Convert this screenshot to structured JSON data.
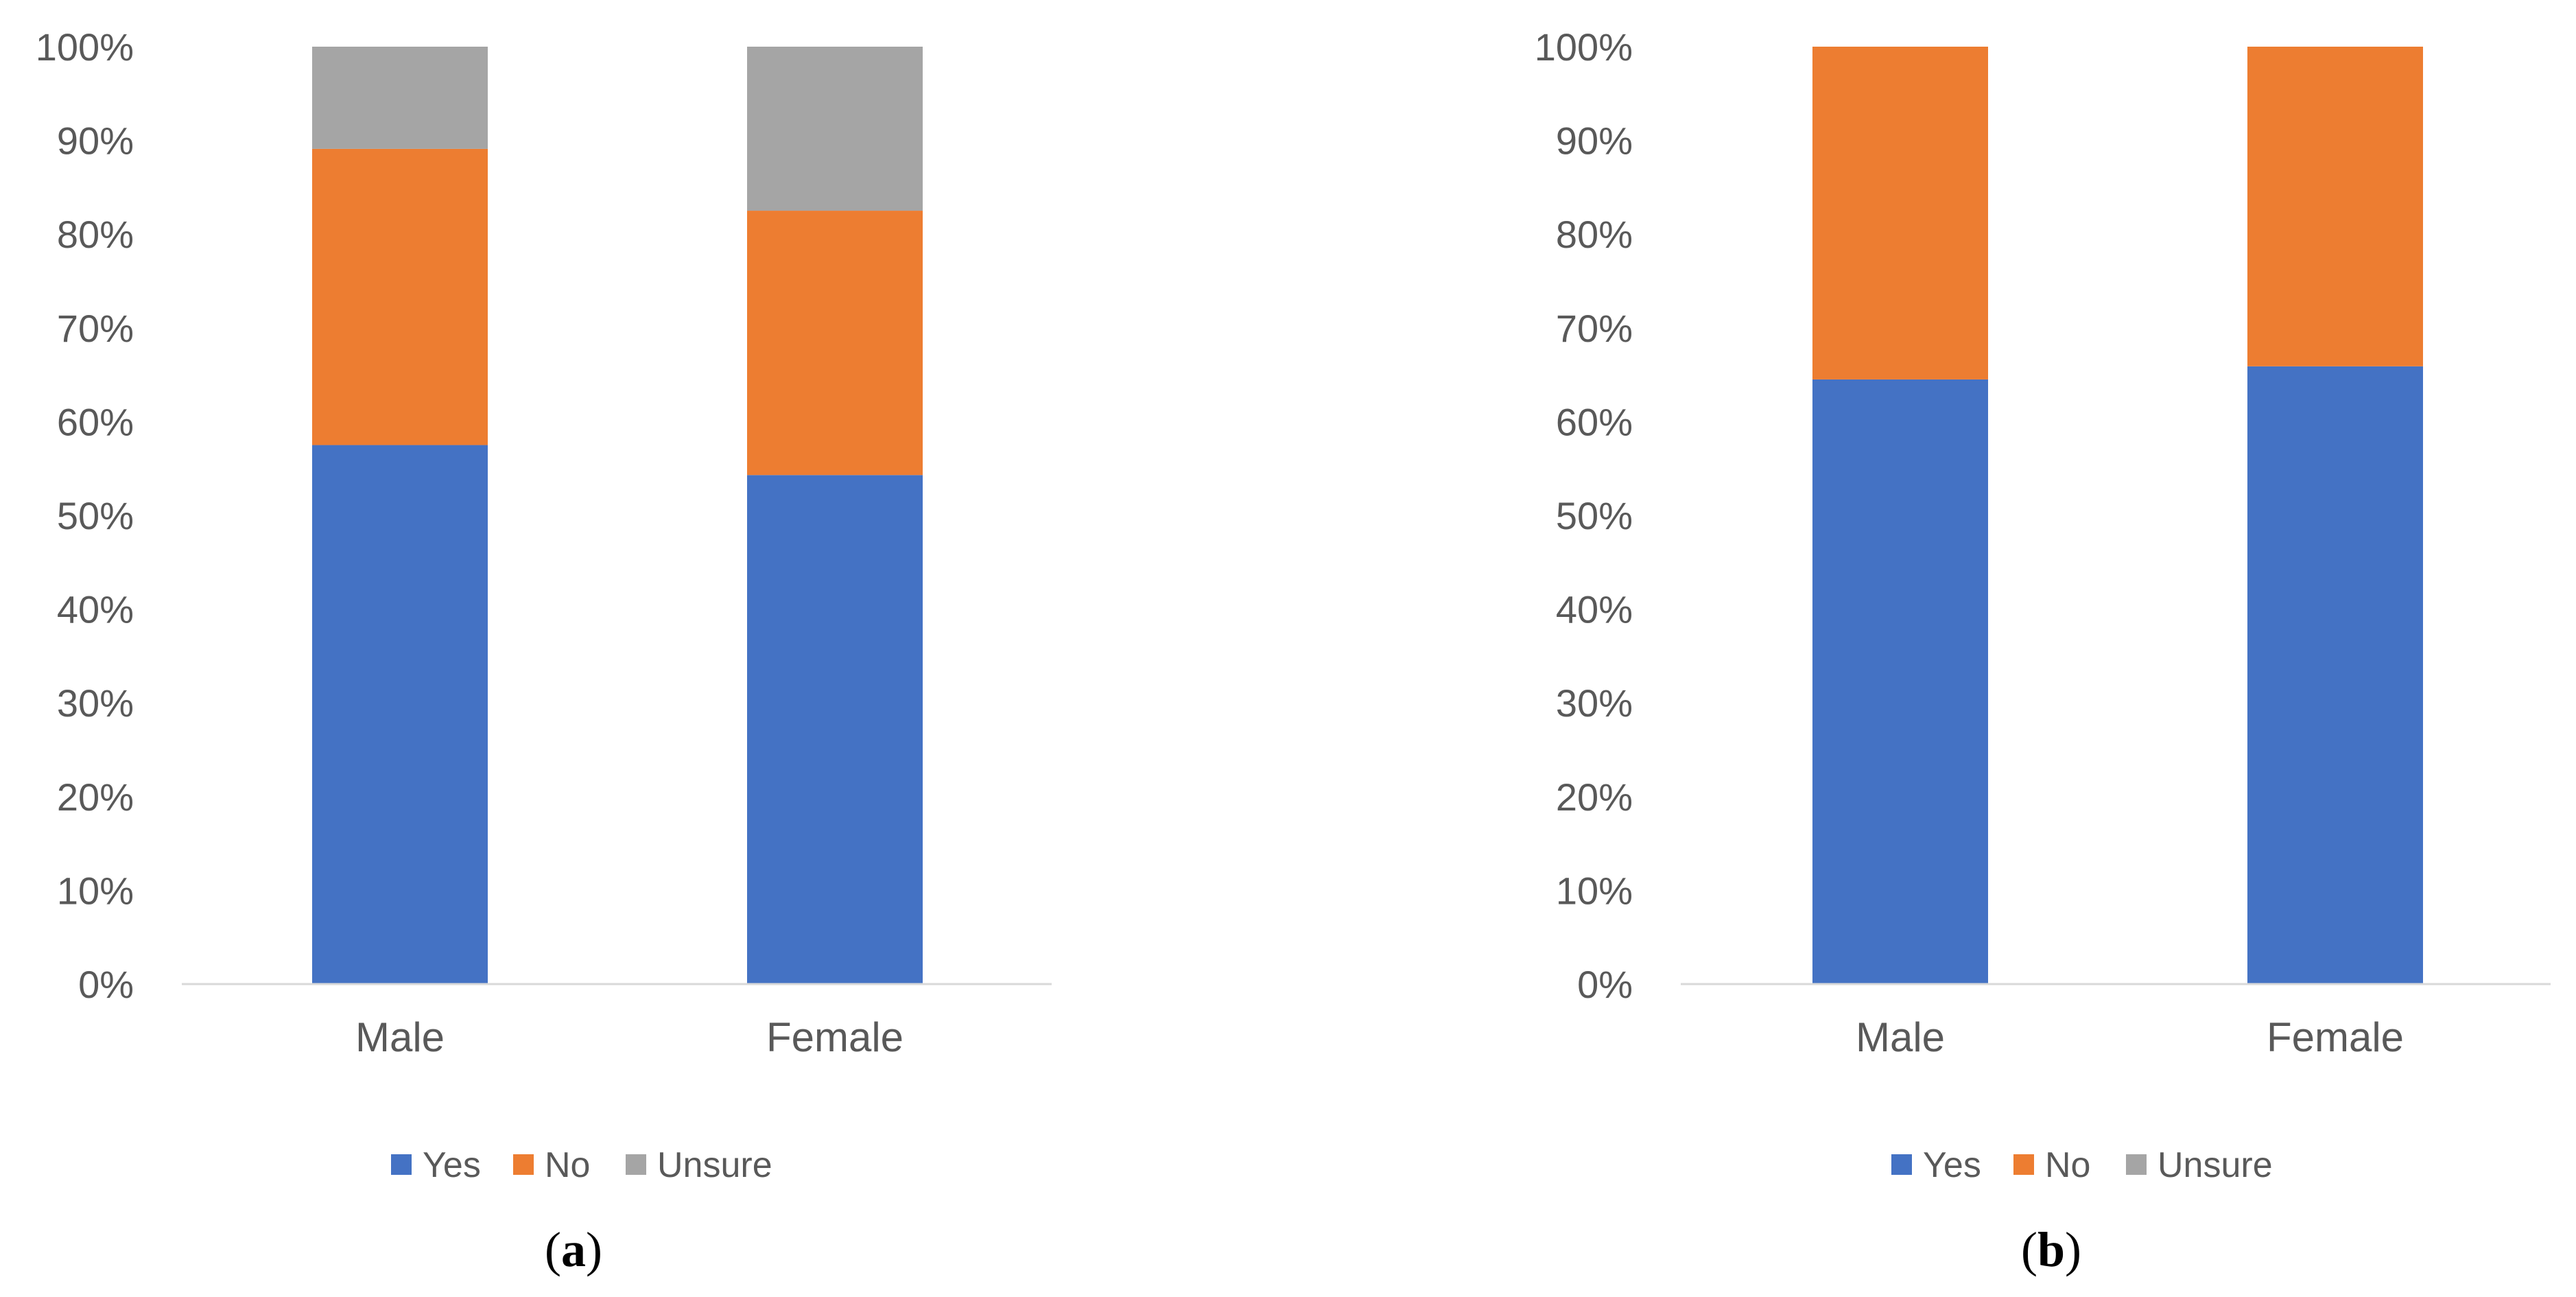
{
  "chart_data": [
    {
      "type": "bar",
      "stacked": true,
      "normalized": true,
      "panel_label": "a",
      "categories": [
        "Male",
        "Female"
      ],
      "series": [
        {
          "name": "Yes",
          "values": [
            57.5,
            54.3
          ],
          "color": "#4472C4"
        },
        {
          "name": "No",
          "values": [
            31.6,
            28.2
          ],
          "color": "#ED7D31"
        },
        {
          "name": "Unsure",
          "values": [
            10.9,
            17.5
          ],
          "color": "#A5A5A5"
        }
      ],
      "ylim": [
        0,
        100
      ],
      "yticks": [
        "0%",
        "10%",
        "20%",
        "30%",
        "40%",
        "50%",
        "60%",
        "70%",
        "80%",
        "90%",
        "100%"
      ],
      "grid": false,
      "legend": "bottom"
    },
    {
      "type": "bar",
      "stacked": true,
      "normalized": true,
      "panel_label": "b",
      "categories": [
        "Male",
        "Female"
      ],
      "series": [
        {
          "name": "Yes",
          "values": [
            64.5,
            65.9
          ],
          "color": "#4472C4"
        },
        {
          "name": "No",
          "values": [
            35.5,
            34.1
          ],
          "color": "#ED7D31"
        },
        {
          "name": "Unsure",
          "values": [
            0,
            0
          ],
          "color": "#A5A5A5"
        }
      ],
      "ylim": [
        0,
        100
      ],
      "yticks": [
        "0%",
        "10%",
        "20%",
        "30%",
        "40%",
        "50%",
        "60%",
        "70%",
        "80%",
        "90%",
        "100%"
      ],
      "grid": false,
      "legend": "bottom"
    }
  ]
}
